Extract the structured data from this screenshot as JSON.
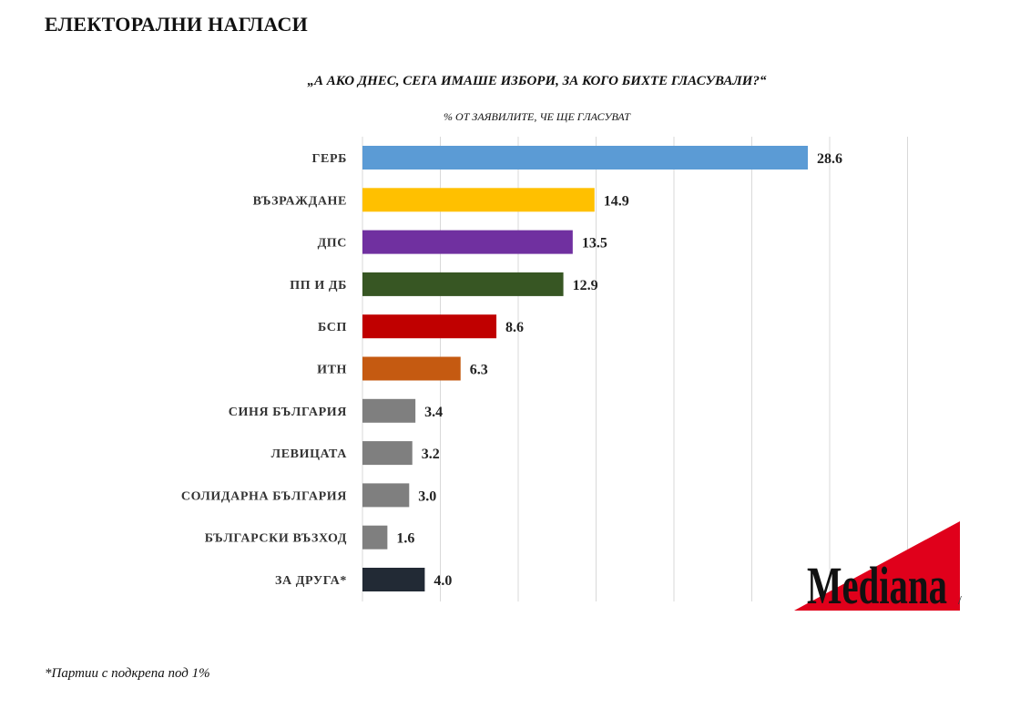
{
  "page_title": "ЕЛЕКТОРАЛНИ НАГЛАСИ",
  "footnote": "*Партии с подкрепа под 1%",
  "logo": {
    "text": "Mediana",
    "colors": {
      "triangle": "#e0001b",
      "text": "#111111"
    }
  },
  "chart_data": {
    "type": "bar",
    "orientation": "horizontal",
    "title": "„А АКО ДНЕС, СЕГА ИМАШЕ ИЗБОРИ, ЗА КОГО БИХТЕ ГЛАСУВАЛИ?“",
    "subtitle": "% ОТ ЗАЯВИЛИТЕ, ЧЕ ЩЕ ГЛАСУВАТ",
    "categories": [
      "ГЕРБ",
      "ВЪЗРАЖДАНЕ",
      "ДПС",
      "ПП И ДБ",
      "БСП",
      "ИТН",
      "СИНЯ БЪЛГАРИЯ",
      "ЛЕВИЦАТА",
      "СОЛИДАРНА БЪЛГАРИЯ",
      "БЪЛГАРСКИ ВЪЗХОД",
      "ЗА ДРУГА*"
    ],
    "values": [
      28.6,
      14.9,
      13.5,
      12.9,
      8.6,
      6.3,
      3.4,
      3.2,
      3.0,
      1.6,
      4.0
    ],
    "value_labels": [
      "28.6",
      "14.9",
      "13.5",
      "12.9",
      "8.6",
      "6.3",
      "3.4",
      "3.2",
      "3.0",
      "1.6",
      "4.0"
    ],
    "colors": [
      "#5b9bd5",
      "#ffc000",
      "#7030a0",
      "#375623",
      "#c00000",
      "#c55a11",
      "#7f7f7f",
      "#7f7f7f",
      "#7f7f7f",
      "#7f7f7f",
      "#222a35"
    ],
    "xlim": [
      0,
      35
    ],
    "grid": true,
    "gridline_step": 5,
    "legend": "none"
  }
}
